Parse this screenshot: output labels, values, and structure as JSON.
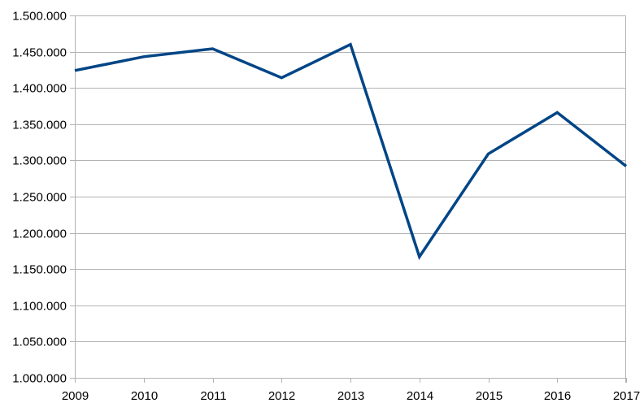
{
  "chart_data": {
    "type": "line",
    "title": "",
    "xlabel": "",
    "ylabel": "",
    "x": [
      2009,
      2010,
      2011,
      2012,
      2013,
      2014,
      2015,
      2016,
      2017
    ],
    "x_tick_labels": [
      "2009",
      "2010",
      "2011",
      "2012",
      "2013",
      "2014",
      "2015",
      "2016",
      "2017"
    ],
    "ylim": [
      1000000,
      1500000
    ],
    "y_ticks": [
      1000000,
      1050000,
      1100000,
      1150000,
      1200000,
      1250000,
      1300000,
      1350000,
      1400000,
      1450000,
      1500000
    ],
    "y_tick_labels": [
      "1.000.000",
      "1.050.000",
      "1.100.000",
      "1.150.000",
      "1.200.000",
      "1.250.000",
      "1.300.000",
      "1.350.000",
      "1.400.000",
      "1.450.000",
      "1.500.000"
    ],
    "grid": "horizontal",
    "legend": "none",
    "series": [
      {
        "color": "#004586",
        "values": [
          1424000,
          1443000,
          1454000,
          1414000,
          1460000,
          1167000,
          1309000,
          1366000,
          1292000
        ]
      }
    ]
  }
}
